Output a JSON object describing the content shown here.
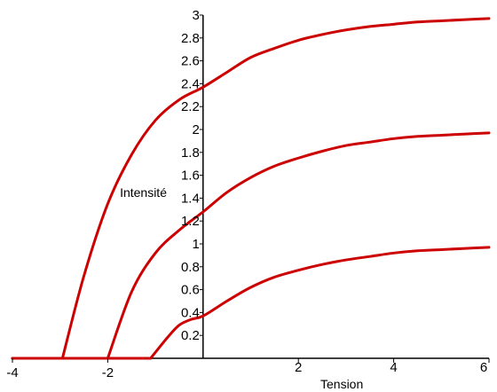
{
  "chart_data": {
    "type": "line",
    "title": "",
    "xlabel": "Tension",
    "ylabel": "Intensité",
    "xlim": [
      -4,
      6
    ],
    "ylim": [
      0,
      3
    ],
    "x_ticks": [
      "-4",
      "-2",
      "2",
      "4",
      "6"
    ],
    "y_ticks": [
      "0.2",
      "0.4",
      "0.6",
      "0.8",
      "1",
      "1.2",
      "1.4",
      "1.6",
      "1.8",
      "2",
      "2.2",
      "2.4",
      "2.6",
      "2.8",
      "3"
    ],
    "grid": false,
    "line_color": "#cc0000",
    "series": [
      {
        "x": [
          -4,
          -2.95,
          -2.5,
          -2,
          -1.5,
          -1,
          -0.5,
          0,
          0.5,
          1,
          1.5,
          2,
          2.5,
          3,
          3.5,
          4,
          4.5,
          5,
          5.5,
          6
        ],
        "values": [
          0,
          0,
          0.72,
          1.35,
          1.78,
          2.08,
          2.26,
          2.37,
          2.5,
          2.63,
          2.71,
          2.78,
          2.83,
          2.87,
          2.9,
          2.92,
          2.94,
          2.95,
          2.96,
          2.97
        ]
      },
      {
        "x": [
          -4,
          -2.0,
          -1.5,
          -1,
          -0.5,
          0,
          0.5,
          1,
          1.5,
          2,
          2.5,
          3,
          3.5,
          4,
          4.5,
          5,
          5.5,
          6
        ],
        "values": [
          0,
          0,
          0.58,
          0.92,
          1.12,
          1.28,
          1.45,
          1.58,
          1.68,
          1.75,
          1.81,
          1.86,
          1.89,
          1.92,
          1.94,
          1.95,
          1.96,
          1.97
        ]
      },
      {
        "x": [
          -4,
          -1.1,
          -0.75,
          -0.5,
          -0.25,
          0,
          0.5,
          1,
          1.5,
          2,
          2.5,
          3,
          3.5,
          4,
          4.5,
          5,
          5.5,
          6
        ],
        "values": [
          0,
          0,
          0.18,
          0.29,
          0.34,
          0.37,
          0.5,
          0.62,
          0.71,
          0.77,
          0.82,
          0.86,
          0.89,
          0.92,
          0.94,
          0.95,
          0.96,
          0.97
        ]
      }
    ]
  }
}
